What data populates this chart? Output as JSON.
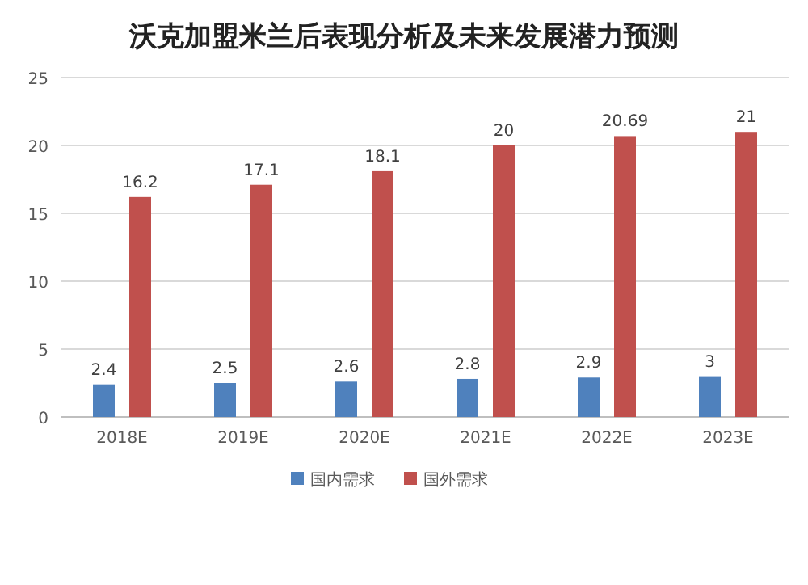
{
  "chart_data": {
    "type": "bar",
    "title": "沃克加盟米兰后表现分析及未来发展潜力预测",
    "categories": [
      "2018E",
      "2019E",
      "2020E",
      "2021E",
      "2022E",
      "2023E"
    ],
    "series": [
      {
        "name": "国内需求",
        "color": "#4f81bd",
        "values": [
          2.4,
          2.5,
          2.6,
          2.8,
          2.9,
          3
        ]
      },
      {
        "name": "国外需求",
        "color": "#c0504d",
        "values": [
          16.2,
          17.1,
          18.1,
          20,
          20.69,
          21
        ]
      }
    ],
    "ylim": [
      0,
      25
    ],
    "yticks": [
      0,
      5,
      10,
      15,
      20,
      25
    ],
    "grid": "y",
    "legend": "bottom",
    "data_labels": true
  }
}
